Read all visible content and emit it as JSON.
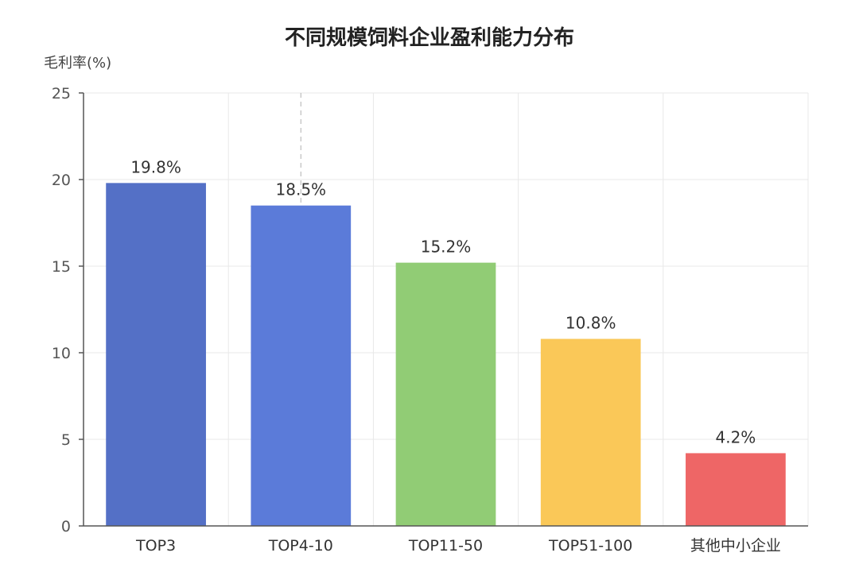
{
  "chart_data": {
    "type": "bar",
    "title": "不同规模饲料企业盈利能力分布",
    "ylabel": "毛利率(%)",
    "xlabel": "",
    "ylim": [
      0,
      25
    ],
    "yticks": [
      0,
      5,
      10,
      15,
      20,
      25
    ],
    "categories": [
      "TOP3",
      "TOP4-10",
      "TOP11-50",
      "TOP51-100",
      "其他中小企业"
    ],
    "values": [
      19.8,
      18.5,
      15.2,
      10.8,
      4.2
    ],
    "data_labels": [
      "19.8%",
      "18.5%",
      "15.2%",
      "10.8%",
      "4.2%"
    ],
    "colors": [
      "#5470c6",
      "#5b7bd9",
      "#91cc75",
      "#fac858",
      "#ee6666"
    ],
    "grid": true,
    "legend": "none",
    "highlighted_category": "TOP4-10"
  }
}
